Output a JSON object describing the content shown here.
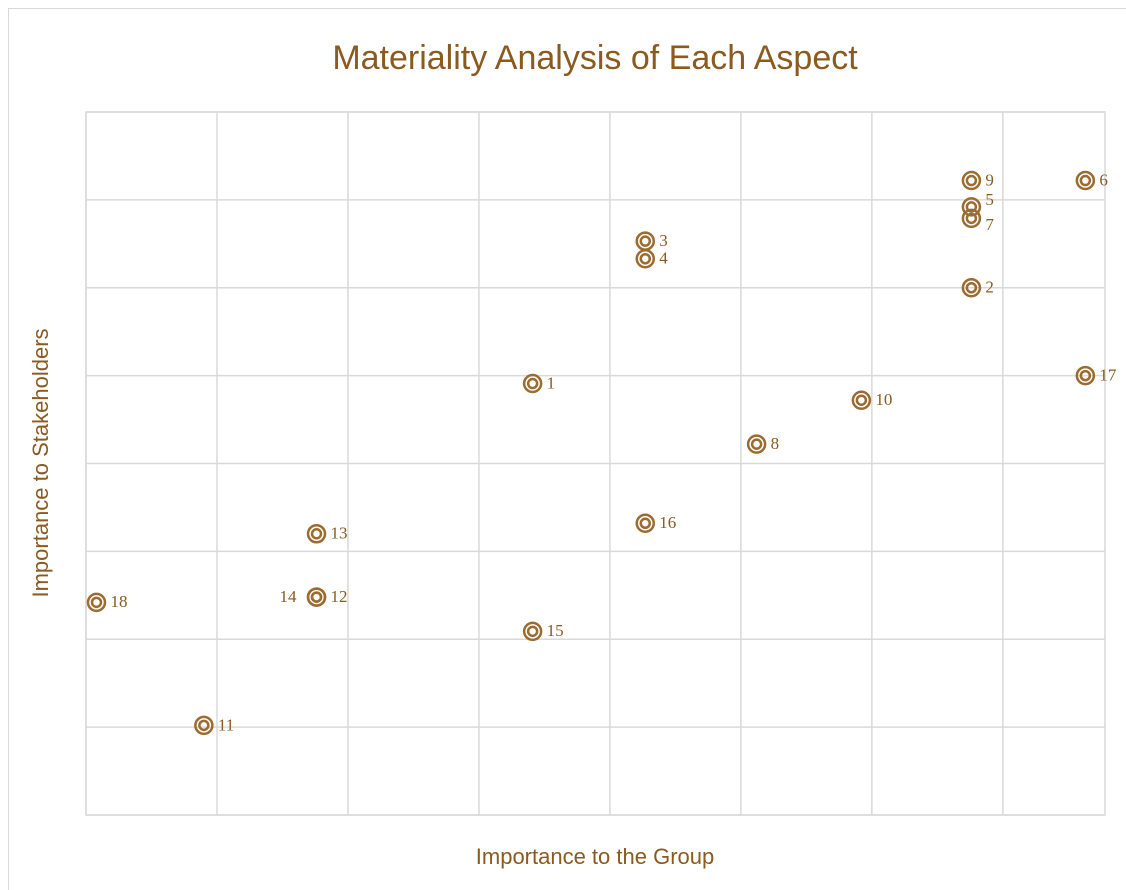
{
  "chart_data": {
    "type": "scatter",
    "title": "Materiality Analysis of Each Aspect",
    "x_label": "Importance to the Group",
    "y_label": "Importance to Stakeholders",
    "color": "#9c6b30",
    "labels": [
      "1",
      "2",
      "3",
      "4",
      "5",
      "6",
      "7",
      "8",
      "9",
      "10",
      "11",
      "12",
      "13",
      "14",
      "15",
      "16",
      "17",
      "18"
    ],
    "x": [
      3.41,
      6.76,
      4.27,
      4.27,
      6.76,
      7.63,
      6.76,
      5.12,
      6.76,
      5.92,
      0.9,
      1.76,
      1.76,
      1.76,
      3.41,
      4.27,
      7.63,
      0.08
    ],
    "values": [
      4.91,
      6.0,
      6.53,
      6.33,
      6.92,
      7.22,
      6.79,
      4.22,
      7.22,
      4.72,
      1.02,
      2.48,
      3.2,
      2.48,
      2.09,
      3.32,
      5.0,
      2.42
    ],
    "xlim": [
      0,
      7.78
    ],
    "xticks": [
      0,
      1,
      2,
      3,
      4,
      5,
      6,
      7
    ],
    "ylim": [
      0,
      8
    ],
    "yticks": [
      0,
      1,
      2,
      3,
      4,
      5,
      6,
      7,
      8
    ],
    "grid": true
  }
}
